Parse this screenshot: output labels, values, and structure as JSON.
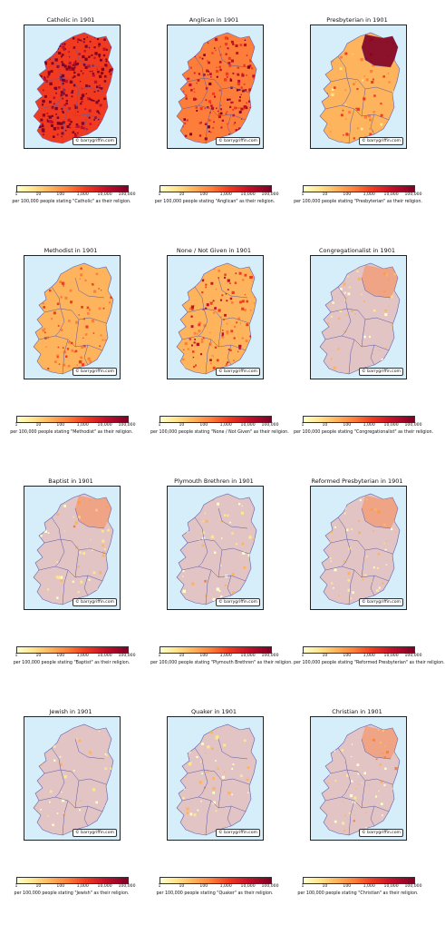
{
  "credit": "© barrygriffin.com",
  "colorbar_ticks": [
    "1",
    "10",
    "100",
    "1,000",
    "10,000",
    "100,000"
  ],
  "colorbar_colors": [
    "#ffffcc",
    "#fee68f",
    "#fdb45c",
    "#fd7e3a",
    "#f03b20",
    "#c3102a",
    "#800026"
  ],
  "panels": [
    {
      "title": "Catholic in 1901",
      "cbar_label": "per 100,000 people stating \"Catholic\" as their religion.",
      "level": 0.95
    },
    {
      "title": "Anglican in 1901",
      "cbar_label": "per 100,000 people stating \"Anglican\" as their religion.",
      "level": 0.68
    },
    {
      "title": "Presbyterian in 1901",
      "cbar_label": "per 100,000 people stating \"Presbyterian\" as their religion.",
      "level": 0.35
    },
    {
      "title": "Methodist in 1901",
      "cbar_label": "per 100,000 people stating \"Methodist\" as their religion.",
      "level": 0.4
    },
    {
      "title": "None / Not Given in 1901",
      "cbar_label": "per 100,000 people stating \"None / Not Given\" as their religion.",
      "level": 0.5
    },
    {
      "title": "Congregationalist in 1901",
      "cbar_label": "per 100,000 people stating \"Congregationalist\" as their religion.",
      "level": 0.06
    },
    {
      "title": "Baptist in 1901",
      "cbar_label": "per 100,000 people stating \"Baptist\" as their religion.",
      "level": 0.08
    },
    {
      "title": "Plymouth Brethren in 1901",
      "cbar_label": "per 100,000 people stating \"Plymouth Brethren\" as their religion.",
      "level": 0.08
    },
    {
      "title": "Reformed Presbyterian in 1901",
      "cbar_label": "per 100,000 people stating \"Reformed Presbyterian\" as their religion.",
      "level": 0.1
    },
    {
      "title": "Jewish in 1901",
      "cbar_label": "per 100,000 people stating \"Jewish\" as their religion.",
      "level": 0.03
    },
    {
      "title": "Quaker in 1901",
      "cbar_label": "per 100,000 people stating \"Quaker\" as their religion.",
      "level": 0.08
    },
    {
      "title": "Christian in 1901",
      "cbar_label": "per 100,000 people stating \"Christian\" as their religion.",
      "level": 0.12
    }
  ]
}
